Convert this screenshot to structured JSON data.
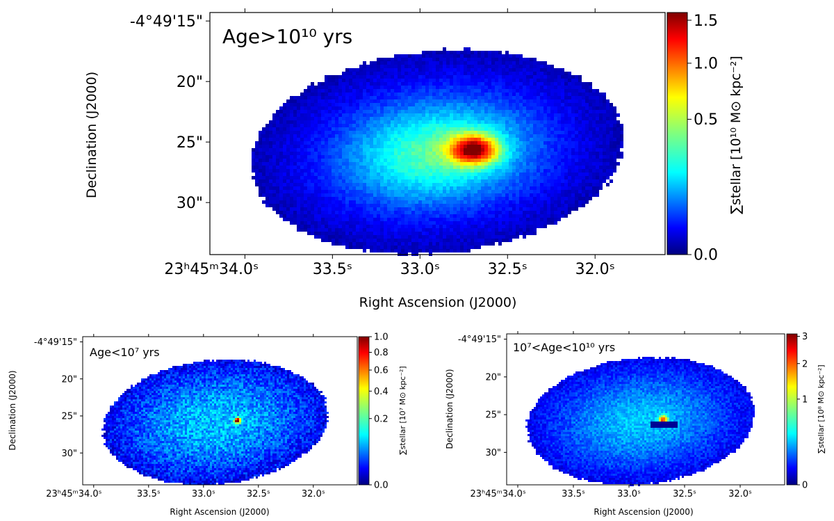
{
  "colors": {
    "background": "#ffffff",
    "jet": [
      "#00007f",
      "#0000ff",
      "#007fff",
      "#00ffff",
      "#7fff7f",
      "#ffff00",
      "#ff7f00",
      "#ff0000",
      "#7f0000"
    ]
  },
  "chart_data": [
    {
      "type": "heatmap",
      "panel": "top",
      "annotation": "Age>10¹⁰ yrs",
      "xlabel": "Right Ascension (J2000)",
      "ylabel": "Declination (J2000)",
      "x_ticks": [
        "23ʰ45ᵐ34.0ˢ",
        "33.5ˢ",
        "33.0ˢ",
        "32.5ˢ",
        "32.0ˢ"
      ],
      "x_tick_values_s": [
        34.0,
        33.5,
        33.0,
        32.5,
        32.0
      ],
      "y_ticks": [
        "-4°49'15\"",
        "20\"",
        "25\"",
        "30\""
      ],
      "y_tick_values_arcsec": [
        15,
        20,
        25,
        30
      ],
      "xlim_s": [
        34.2,
        31.6
      ],
      "ylim_arcsec": [
        14.3,
        34.3
      ],
      "colorbar": {
        "label": "∑stellar [10¹⁰ M⊙ kpc⁻²]",
        "ticks": [
          "0.0",
          "0.5",
          "1.0",
          "1.5"
        ],
        "tick_values": [
          0.0,
          0.5,
          1.0,
          1.5
        ],
        "range": [
          0.0,
          1.6
        ],
        "scale": "sqrt",
        "colormap": "jet"
      },
      "map": {
        "center_ra_s": 32.7,
        "center_dec_arcsec": 25.5,
        "peak": 1.6,
        "core_ra_s": 0.095,
        "core_dec_arcsec": 0.85,
        "halo": 0.12,
        "noise": 0.06,
        "style": "old"
      }
    },
    {
      "type": "heatmap",
      "panel": "bottom-left",
      "annotation": "Age<10⁷ yrs",
      "xlabel": "Right Ascension (J2000)",
      "ylabel": "Declination (J2000)",
      "x_ticks": [
        "23ʰ45ᵐ34.0ˢ",
        "33.5ˢ",
        "33.0ˢ",
        "32.5ˢ",
        "32.0ˢ"
      ],
      "x_tick_values_s": [
        34.0,
        33.5,
        33.0,
        32.5,
        32.0
      ],
      "y_ticks": [
        "-4°49'15\"",
        "20\"",
        "25\"",
        "30\""
      ],
      "y_tick_values_arcsec": [
        15,
        20,
        25,
        30
      ],
      "xlim_s": [
        34.1,
        31.6
      ],
      "ylim_arcsec": [
        14.3,
        34.3
      ],
      "colorbar": {
        "label": "∑stellar [10⁷ M⊙ kpc⁻²]",
        "ticks": [
          "0.0",
          "0.2",
          "0.4",
          "0.6",
          "0.8",
          "1.0"
        ],
        "tick_values": [
          0.0,
          0.2,
          0.4,
          0.6,
          0.8,
          1.0
        ],
        "range": [
          0.0,
          1.0
        ],
        "scale": "sqrt",
        "colormap": "jet"
      },
      "map": {
        "center_ra_s": 32.7,
        "center_dec_arcsec": 25.5,
        "peak": 1.0,
        "core_ra_s": 0.02,
        "core_dec_arcsec": 0.25,
        "halo": 0.06,
        "noise": 0.08,
        "style": "young"
      }
    },
    {
      "type": "heatmap",
      "panel": "bottom-right",
      "annotation": "10⁷<Age<10¹⁰ yrs",
      "xlabel": "Right Ascension (J2000)",
      "ylabel": "Declination (J2000)",
      "x_ticks": [
        "23ʰ45ᵐ34.0ˢ",
        "33.5ˢ",
        "33.0ˢ",
        "32.5ˢ",
        "32.0ˢ"
      ],
      "x_tick_values_s": [
        34.0,
        33.5,
        33.0,
        32.5,
        32.0
      ],
      "y_ticks": [
        "-4°49'15\"",
        "20\"",
        "25\"",
        "30\""
      ],
      "y_tick_values_arcsec": [
        15,
        20,
        25,
        30
      ],
      "xlim_s": [
        34.1,
        31.6
      ],
      "ylim_arcsec": [
        14.3,
        34.3
      ],
      "colorbar": {
        "label": "∑stellar [10⁸ M⊙ kpc⁻²]",
        "ticks": [
          "0",
          "1",
          "2",
          "3"
        ],
        "tick_values": [
          0,
          1,
          2,
          3
        ],
        "range": [
          0,
          3.1
        ],
        "scale": "sqrt",
        "colormap": "jet"
      },
      "map": {
        "center_ra_s": 32.7,
        "center_dec_arcsec": 25.5,
        "peak": 3.1,
        "core_ra_s": 0.03,
        "core_dec_arcsec": 0.35,
        "halo": 0.25,
        "noise": 0.1,
        "style": "intermediate"
      }
    }
  ]
}
